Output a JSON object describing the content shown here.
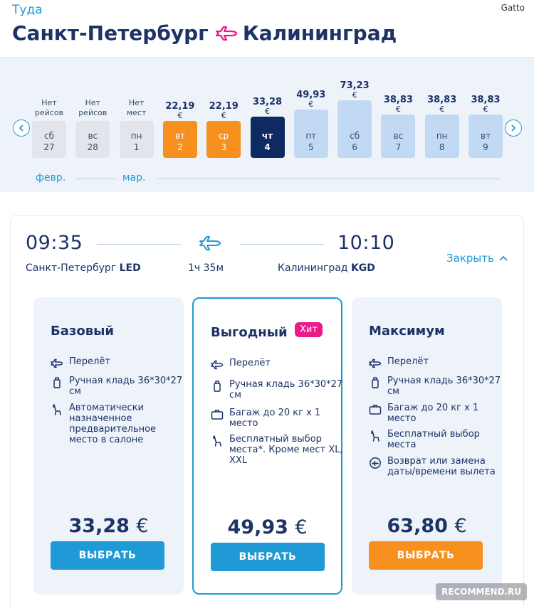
{
  "header": {
    "direction": "Туда",
    "watermark": "Gatto",
    "origin": "Санкт-Петербург",
    "destination": "Калининград"
  },
  "calendar": {
    "days": [
      {
        "label1": "Нет",
        "label2": "рейсов",
        "price": "",
        "currency": "",
        "weekday": "сб",
        "day": "27",
        "state": "none",
        "level": 0
      },
      {
        "label1": "Нет",
        "label2": "рейсов",
        "price": "",
        "currency": "",
        "weekday": "вс",
        "day": "28",
        "state": "none",
        "level": 0
      },
      {
        "label1": "Нет",
        "label2": "мест",
        "price": "",
        "currency": "",
        "weekday": "пн",
        "day": "1",
        "state": "none",
        "level": 0
      },
      {
        "label1": "",
        "label2": "",
        "price": "22,19",
        "currency": "€",
        "weekday": "вт",
        "day": "2",
        "state": "orange",
        "level": 22.19
      },
      {
        "label1": "",
        "label2": "",
        "price": "22,19",
        "currency": "€",
        "weekday": "ср",
        "day": "3",
        "state": "orange",
        "level": 22.19
      },
      {
        "label1": "",
        "label2": "",
        "price": "33,28",
        "currency": "€",
        "weekday": "чт",
        "day": "4",
        "state": "navy",
        "level": 33.28
      },
      {
        "label1": "",
        "label2": "",
        "price": "49,93",
        "currency": "€",
        "weekday": "пт",
        "day": "5",
        "state": "light",
        "level": 49.93
      },
      {
        "label1": "",
        "label2": "",
        "price": "73,23",
        "currency": "€",
        "weekday": "сб",
        "day": "6",
        "state": "light",
        "level": 73.23
      },
      {
        "label1": "",
        "label2": "",
        "price": "38,83",
        "currency": "€",
        "weekday": "вс",
        "day": "7",
        "state": "light",
        "level": 38.83
      },
      {
        "label1": "",
        "label2": "",
        "price": "38,83",
        "currency": "€",
        "weekday": "пн",
        "day": "8",
        "state": "light",
        "level": 38.83
      },
      {
        "label1": "",
        "label2": "",
        "price": "38,83",
        "currency": "€",
        "weekday": "вт",
        "day": "9",
        "state": "light",
        "level": 38.83
      }
    ],
    "months": [
      "февр.",
      "мар."
    ]
  },
  "flight": {
    "depart_time": "09:35",
    "arrive_time": "10:10",
    "depart_city": "Санкт-Петербург",
    "depart_code": "LED",
    "arrive_city": "Калининград",
    "arrive_code": "KGD",
    "duration": "1ч 35м",
    "close_label": "Закрыть"
  },
  "fares": [
    {
      "title": "Базовый",
      "badge": "",
      "features": [
        {
          "icon": "plane-icon",
          "text": "Перелёт"
        },
        {
          "icon": "hand-luggage-icon",
          "text": "Ручная кладь 36*30*27 см"
        },
        {
          "icon": "seat-icon",
          "text": "Автоматически назначенное предварительное место в салоне"
        }
      ],
      "price": "33,28",
      "currency": "€",
      "button": "ВЫБРАТЬ"
    },
    {
      "title": "Выгодный",
      "badge": "Хит",
      "features": [
        {
          "icon": "plane-icon",
          "text": "Перелёт"
        },
        {
          "icon": "hand-luggage-icon",
          "text": "Ручная кладь 36*30*27 см"
        },
        {
          "icon": "suitcase-icon",
          "text": "Багаж до 20 кг х 1 место"
        },
        {
          "icon": "seat-icon",
          "text": "Бесплатный выбор места*. Кроме мест XL, XXL"
        }
      ],
      "price": "49,93",
      "currency": "€",
      "button": "ВЫБРАТЬ"
    },
    {
      "title": "Максимум",
      "badge": "",
      "features": [
        {
          "icon": "plane-icon",
          "text": "Перелёт"
        },
        {
          "icon": "hand-luggage-icon",
          "text": "Ручная кладь 36*30*27 см"
        },
        {
          "icon": "suitcase-icon",
          "text": "Багаж до 20 кг х 1 место"
        },
        {
          "icon": "seat-icon",
          "text": "Бесплатный выбор места"
        },
        {
          "icon": "exchange-icon",
          "text": "Возврат или замена даты/времени вылета"
        }
      ],
      "price": "63,80",
      "currency": "€",
      "button": "ВЫБРАТЬ"
    }
  ],
  "colors": {
    "accent": "#1f9ad6",
    "navy": "#1d3366",
    "orange": "#f7901e",
    "pink": "#ee1a8a"
  },
  "watermark_bottom": "RECOMMEND.RU"
}
